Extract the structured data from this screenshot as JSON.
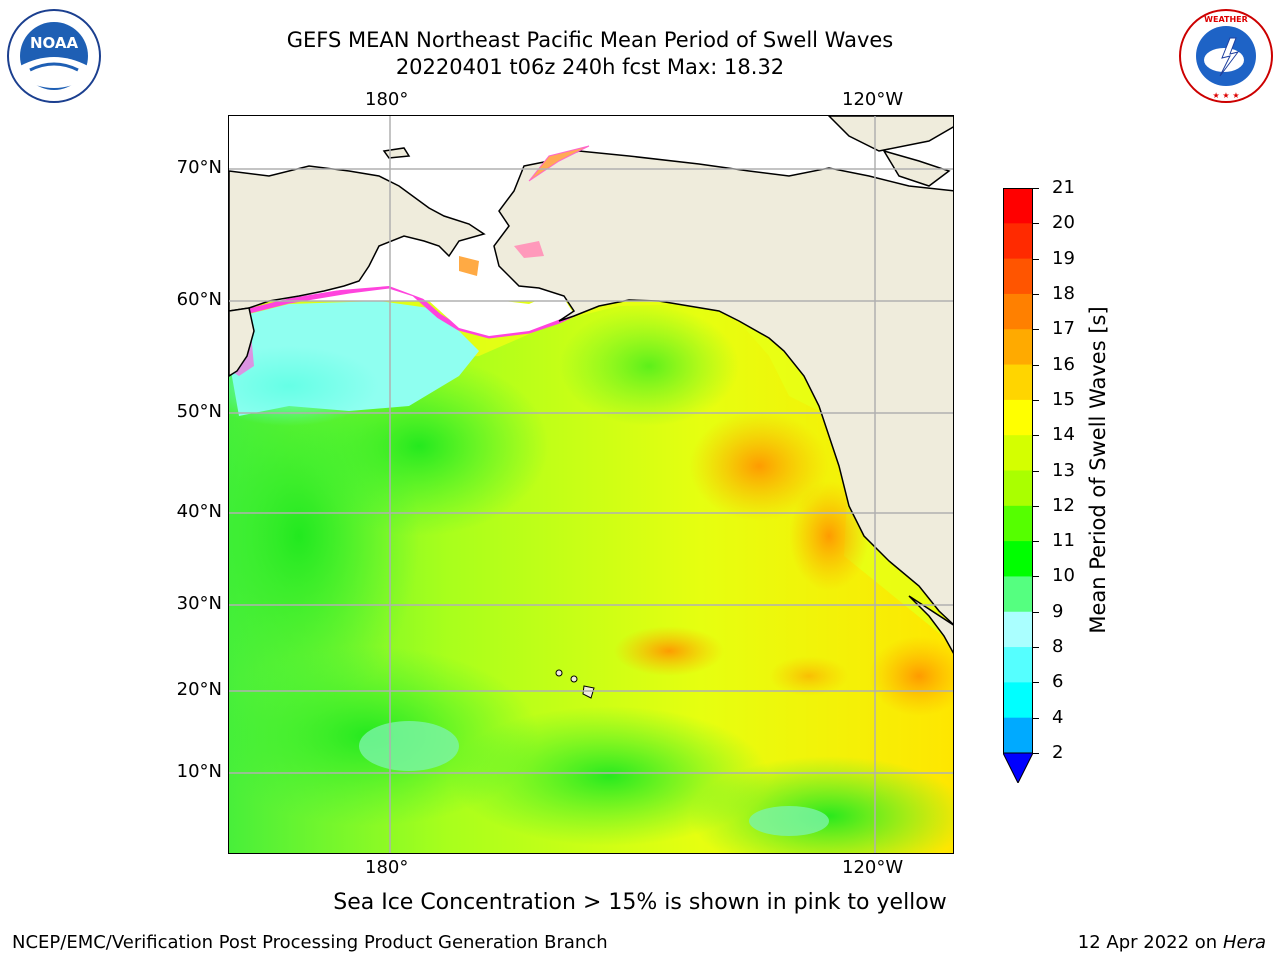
{
  "title_line1": "GEFS MEAN Northeast Pacific Mean Period of Swell Waves",
  "title_line2": "20220401 t06z 240h fcst   Max: 18.32",
  "noaa_logo": {
    "icon": "noaa-logo",
    "text": "NOAA",
    "ring_text": "NATIONAL OCEANIC AND ATMOSPHERIC ADMINISTRATION · U.S. DEPARTMENT OF COMMERCE"
  },
  "nws_logo": {
    "icon": "nws-logo",
    "ring_text": "NATIONAL WEATHER SERVICE"
  },
  "map": {
    "lon_labels_top": [
      "180°",
      "120°W"
    ],
    "lon_labels_bottom": [
      "180°",
      "120°W"
    ],
    "lat_labels": [
      "70°N",
      "60°N",
      "50°N",
      "40°N",
      "30°N",
      "20°N",
      "10°N"
    ],
    "colors": {
      "land": "#efecdc",
      "ice_free_ocean": "#ffffff",
      "coastline": "#000000",
      "grid": "#b0b0b0"
    }
  },
  "colorbar": {
    "label": "Mean Period of Swell Waves [s]",
    "ticks": [
      "21",
      "20",
      "19",
      "18",
      "17",
      "16",
      "15",
      "14",
      "13",
      "12",
      "11",
      "10",
      "9",
      "8",
      "6",
      "4",
      "2"
    ],
    "colors": [
      "#ff0000",
      "#ff2a00",
      "#ff5500",
      "#ff8000",
      "#ffaa00",
      "#ffd500",
      "#ffff00",
      "#d4ff00",
      "#aaff00",
      "#55ff00",
      "#00ff00",
      "#55ff80",
      "#aaffff",
      "#55ffff",
      "#00ffff",
      "#00aaff",
      "#0000ff"
    ]
  },
  "caption": "Sea Ice Concentration > 15% is shown in pink to yellow",
  "footer_left": "NCEP/EMC/Verification Post Processing Product Generation Branch",
  "footer_date": "12 Apr 2022 on",
  "footer_machine": "Hera"
}
